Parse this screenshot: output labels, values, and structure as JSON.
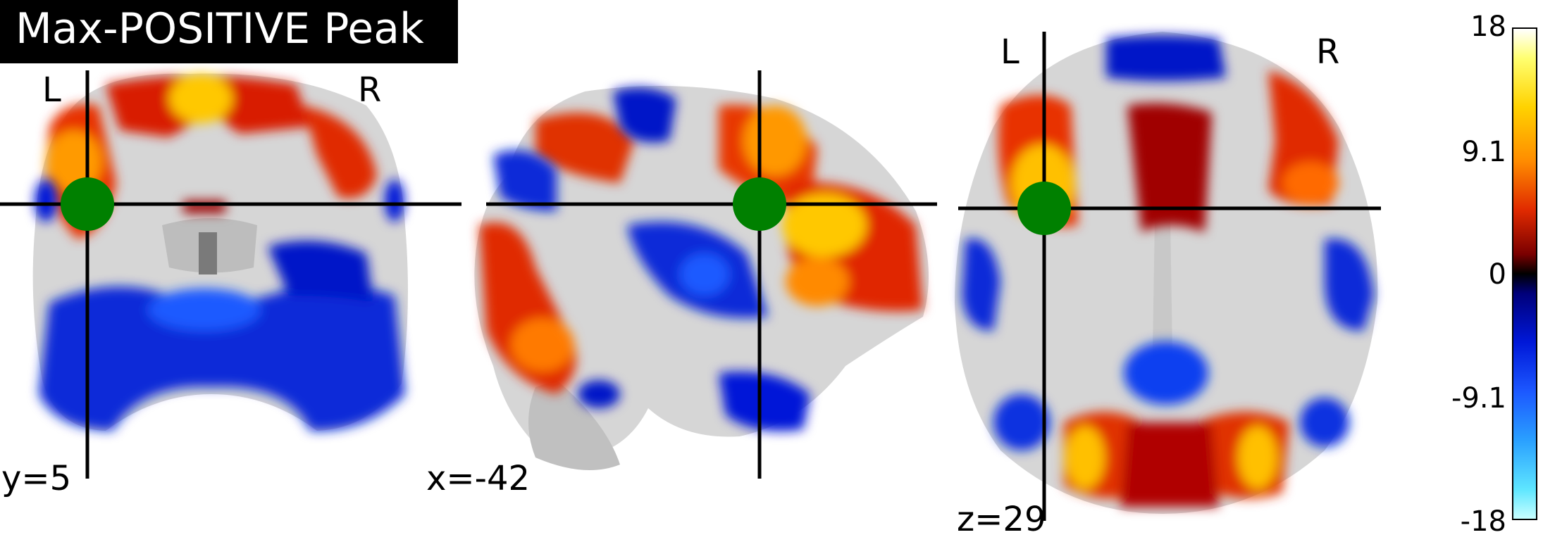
{
  "title": "Max-POSITIVE Peak",
  "views": [
    {
      "name": "coronal",
      "coord_label": "y=5",
      "left_label": "L",
      "right_label": "R"
    },
    {
      "name": "sagittal",
      "coord_label": "x=-42"
    },
    {
      "name": "axial",
      "coord_label": "z=29",
      "left_label": "L",
      "right_label": "R"
    }
  ],
  "colorbar": {
    "ticks": [
      "18",
      "9.1",
      "0",
      "-9.1",
      "-18"
    ],
    "colormap": "cold_hot",
    "max": 18,
    "min": -18
  },
  "colors": {
    "marker": "#008000",
    "crosshair": "#000000",
    "brain": "#d9d9d9",
    "hot": "#e02a00",
    "cold": "#0018d8"
  }
}
